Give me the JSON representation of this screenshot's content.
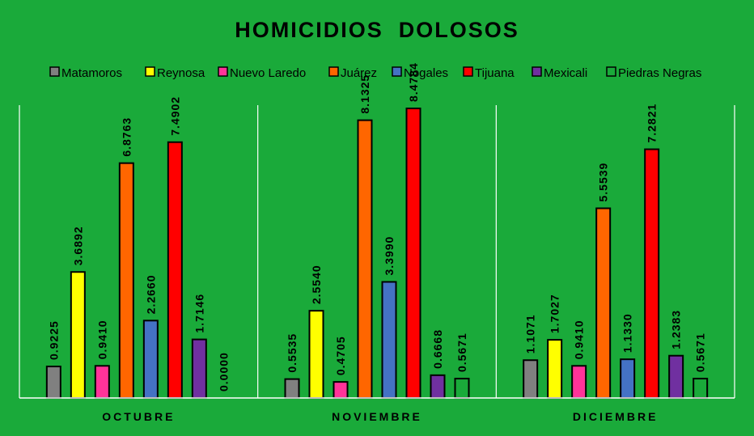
{
  "chart_data": {
    "type": "bar",
    "title": "HOMICIDIOS  DOLOSOS",
    "categories": [
      "OCTUBRE",
      "NOVIEMBRE",
      "DICIEMBRE"
    ],
    "series": [
      {
        "name": "Matamoros",
        "color": "#808080",
        "values": [
          0.9225,
          0.5535,
          1.1071
        ],
        "labels": [
          "0.9225",
          "0.5535",
          "1.1071"
        ]
      },
      {
        "name": "Reynosa",
        "color": "#ffff00",
        "values": [
          3.6892,
          2.554,
          1.7027
        ],
        "labels": [
          "3.6892",
          "2.5540",
          "1.7027"
        ]
      },
      {
        "name": "Nuevo Laredo",
        "color": "#ff3399",
        "values": [
          0.941,
          0.4705,
          0.941
        ],
        "labels": [
          "0.9410",
          "0.4705",
          "0.9410"
        ]
      },
      {
        "name": "Juárez",
        "color": "#ff6600",
        "values": [
          6.8763,
          8.1325,
          5.5539
        ],
        "labels": [
          "6.8763",
          "8.1325",
          "5.5539"
        ]
      },
      {
        "name": "Nogales",
        "color": "#4472c4",
        "values": [
          2.266,
          3.399,
          1.133
        ],
        "labels": [
          "2.2660",
          "3.3990",
          "1.1330"
        ]
      },
      {
        "name": "Tijuana",
        "color": "#ff0000",
        "values": [
          7.4902,
          8.4784,
          7.2821
        ],
        "labels": [
          "7.4902",
          "8.4784",
          "7.2821"
        ]
      },
      {
        "name": "Mexicali",
        "color": "#7030a0",
        "values": [
          1.7146,
          0.6668,
          1.2383
        ],
        "labels": [
          "1.7146",
          "0.6668",
          "1.2383"
        ]
      },
      {
        "name": "Piedras Negras",
        "color": "#1aaa3a",
        "values": [
          0.0,
          0.5671,
          0.5671
        ],
        "labels": [
          "0.0000",
          "0.5671",
          "0.5671"
        ]
      }
    ],
    "ylim": [
      0,
      9
    ],
    "legend_position": "top",
    "grid": false,
    "background": "#1aaa3a"
  }
}
